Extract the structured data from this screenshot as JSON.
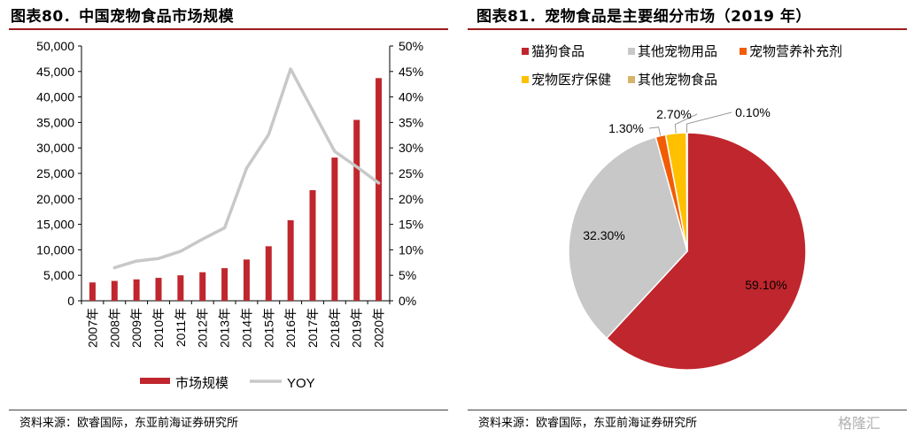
{
  "left": {
    "title": "图表80．中国宠物食品市场规模",
    "source": "资料来源：欧睿国际，东亚前海证券研究所"
  },
  "right": {
    "title": "图表81．宠物食品是主要细分市场（2019 年）",
    "source": "资料来源：欧睿国际，东亚前海证券研究所"
  },
  "watermark": "格隆汇",
  "colors": {
    "bar": "#c0262d",
    "line": "#c8c8c8",
    "rule": "#9b1c1c"
  },
  "chart_data": [
    {
      "type": "bar",
      "categories": [
        "2007年",
        "2008年",
        "2009年",
        "2010年",
        "2011年",
        "2012年",
        "2013年",
        "2014年",
        "2015年",
        "2016年",
        "2017年",
        "2018年",
        "2019年",
        "2020年"
      ],
      "series": [
        {
          "name": "市场规模",
          "type": "bar",
          "axis": "left",
          "values": [
            3600,
            3900,
            4200,
            4500,
            5000,
            5600,
            6400,
            8100,
            10700,
            15800,
            21700,
            28100,
            35500,
            43700
          ]
        },
        {
          "name": "YOY",
          "type": "line",
          "axis": "right",
          "values": [
            null,
            6.5,
            7.8,
            8.3,
            9.7,
            12.1,
            14.3,
            26.0,
            32.6,
            45.5,
            37.4,
            29.3,
            26.3,
            23.1
          ]
        }
      ],
      "y_left": {
        "ylim": [
          0,
          50000
        ],
        "ticks": [
          "0",
          "5,000",
          "10,000",
          "15,000",
          "20,000",
          "25,000",
          "30,000",
          "35,000",
          "40,000",
          "45,000",
          "50,000"
        ]
      },
      "y_right": {
        "ylim": [
          0,
          50
        ],
        "ticks": [
          "0%",
          "5%",
          "10%",
          "15%",
          "20%",
          "25%",
          "30%",
          "35%",
          "40%",
          "45%",
          "50%"
        ]
      },
      "legend_position": "bottom",
      "grid": false
    },
    {
      "type": "pie",
      "slices": [
        {
          "name": "猫狗食品",
          "value": 59.1,
          "label": "59.10%",
          "color": "#c0262d"
        },
        {
          "name": "其他宠物用品",
          "value": 32.3,
          "label": "32.30%",
          "color": "#c8c8c8"
        },
        {
          "name": "宠物营养补充剂",
          "value": 1.3,
          "label": "1.30%",
          "color": "#f25c05"
        },
        {
          "name": "宠物医疗保健",
          "value": 2.7,
          "label": "2.70%",
          "color": "#ffc000"
        },
        {
          "name": "其他宠物食品",
          "value": 0.1,
          "label": "0.10%",
          "color": "#d6b36a"
        }
      ],
      "legend_position": "top",
      "start": "12 o'clock",
      "direction": "clockwise"
    }
  ]
}
